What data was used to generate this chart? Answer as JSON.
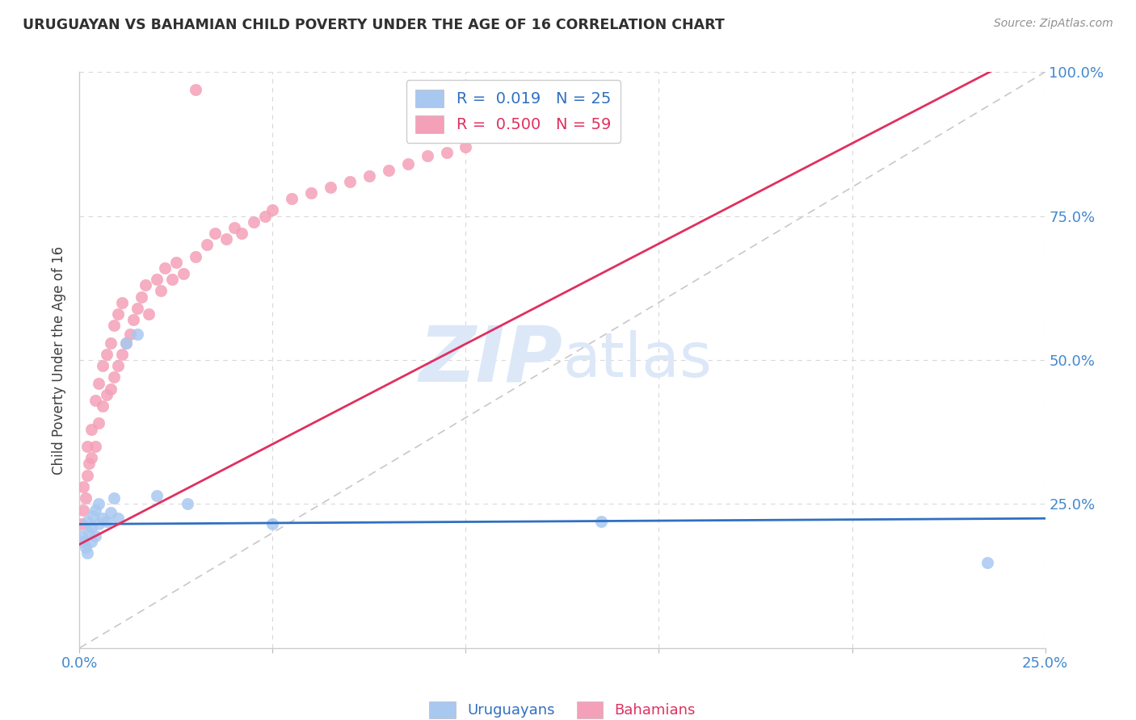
{
  "title": "URUGUAYAN VS BAHAMIAN CHILD POVERTY UNDER THE AGE OF 16 CORRELATION CHART",
  "source": "Source: ZipAtlas.com",
  "ylabel": "Child Poverty Under the Age of 16",
  "xlim": [
    0.0,
    0.25
  ],
  "ylim": [
    0.0,
    1.0
  ],
  "blue_color": "#A8C8F0",
  "pink_color": "#F4A0B8",
  "blue_line_color": "#3070C0",
  "pink_line_color": "#E03060",
  "grid_color": "#D8D8D8",
  "ref_line_color": "#C8C8C8",
  "background_color": "#FFFFFF",
  "title_color": "#303030",
  "source_color": "#909090",
  "axis_label_color": "#4488CC",
  "watermark_text": "ZIPatlas",
  "watermark_color": "#DCE8F8",
  "legend_blue_text": "R =  0.019   N = 25",
  "legend_pink_text": "R =  0.500   N = 59",
  "bottom_legend_blue": "Uruguayans",
  "bottom_legend_pink": "Bahamians",
  "uru_x": [
    0.0005,
    0.001,
    0.0015,
    0.002,
    0.002,
    0.0025,
    0.003,
    0.003,
    0.0035,
    0.004,
    0.004,
    0.005,
    0.005,
    0.006,
    0.007,
    0.008,
    0.009,
    0.01,
    0.012,
    0.015,
    0.02,
    0.028,
    0.05,
    0.135,
    0.235
  ],
  "uru_y": [
    0.195,
    0.185,
    0.175,
    0.22,
    0.165,
    0.2,
    0.21,
    0.185,
    0.23,
    0.195,
    0.24,
    0.215,
    0.25,
    0.225,
    0.22,
    0.235,
    0.26,
    0.225,
    0.53,
    0.545,
    0.265,
    0.25,
    0.215,
    0.22,
    0.148
  ],
  "bah_x": [
    0.0005,
    0.001,
    0.001,
    0.0015,
    0.002,
    0.002,
    0.0025,
    0.003,
    0.003,
    0.004,
    0.004,
    0.005,
    0.005,
    0.006,
    0.006,
    0.007,
    0.007,
    0.008,
    0.008,
    0.009,
    0.009,
    0.01,
    0.01,
    0.011,
    0.011,
    0.012,
    0.013,
    0.014,
    0.015,
    0.016,
    0.017,
    0.018,
    0.02,
    0.021,
    0.022,
    0.024,
    0.025,
    0.027,
    0.03,
    0.033,
    0.035,
    0.038,
    0.04,
    0.042,
    0.045,
    0.048,
    0.05,
    0.055,
    0.06,
    0.065,
    0.07,
    0.075,
    0.08,
    0.085,
    0.09,
    0.095,
    0.1,
    0.115,
    0.03
  ],
  "bah_y": [
    0.215,
    0.24,
    0.28,
    0.26,
    0.3,
    0.35,
    0.32,
    0.33,
    0.38,
    0.35,
    0.43,
    0.39,
    0.46,
    0.42,
    0.49,
    0.44,
    0.51,
    0.45,
    0.53,
    0.47,
    0.56,
    0.49,
    0.58,
    0.51,
    0.6,
    0.53,
    0.545,
    0.57,
    0.59,
    0.61,
    0.63,
    0.58,
    0.64,
    0.62,
    0.66,
    0.64,
    0.67,
    0.65,
    0.68,
    0.7,
    0.72,
    0.71,
    0.73,
    0.72,
    0.74,
    0.75,
    0.76,
    0.78,
    0.79,
    0.8,
    0.81,
    0.82,
    0.83,
    0.84,
    0.855,
    0.86,
    0.87,
    0.895,
    0.97
  ]
}
